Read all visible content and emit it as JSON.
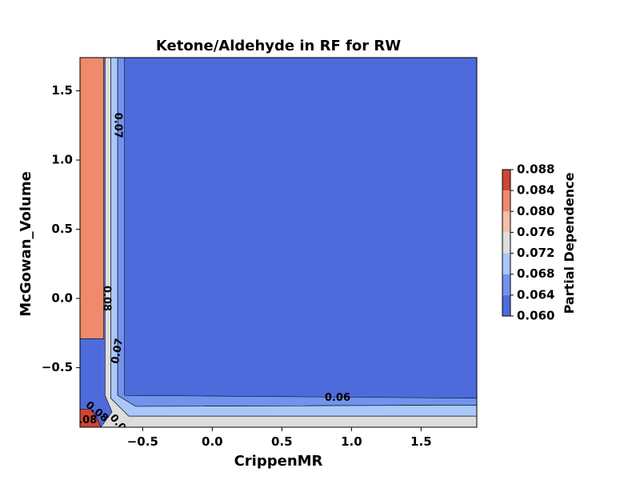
{
  "chart_data": {
    "type": "contour",
    "title": "Ketone/Aldehyde in RF for RW",
    "xlabel": "CrippenMR",
    "ylabel": "McGowan_Volume",
    "xlim": [
      -0.95,
      1.9
    ],
    "ylim": [
      -0.93,
      1.74
    ],
    "x_ticks": [
      -0.5,
      0.0,
      0.5,
      1.0,
      1.5
    ],
    "x_tick_labels": [
      "−0.5",
      "0.0",
      "0.5",
      "1.0",
      "1.5"
    ],
    "y_ticks": [
      -0.5,
      0.0,
      0.5,
      1.0,
      1.5
    ],
    "y_tick_labels": [
      "−0.5",
      "0.0",
      "0.5",
      "1.0",
      "1.5"
    ],
    "grid": false,
    "colorbar": {
      "label": "Partial Dependence",
      "levels": [
        0.06,
        0.064,
        0.068,
        0.072,
        0.076,
        0.08,
        0.084,
        0.088
      ],
      "tick_labels": [
        "0.060",
        "0.064",
        "0.068",
        "0.072",
        "0.076",
        "0.080",
        "0.084",
        "0.088"
      ],
      "colors": [
        "#4e6bdc",
        "#7193ee",
        "#aac7f9",
        "#dddddd",
        "#f5c0a6",
        "#ef8a6c",
        "#cf4436"
      ]
    },
    "contour_labels": [
      {
        "text": "0.07",
        "x": -0.68,
        "y": 1.25,
        "rotation": 90
      },
      {
        "text": "0.08",
        "x": -0.76,
        "y": -0.0,
        "rotation": 90
      },
      {
        "text": "0.07",
        "x": -0.68,
        "y": -0.38,
        "rotation": -80
      },
      {
        "text": "0.06",
        "x": 0.9,
        "y": -0.72,
        "rotation": 0
      },
      {
        "text": "0.08",
        "x": -0.83,
        "y": -0.82,
        "rotation": 40
      },
      {
        "text": "0.08",
        "x": -0.92,
        "y": -0.88,
        "rotation": 0
      },
      {
        "text": "0.0",
        "x": -0.68,
        "y": -0.9,
        "rotation": 50
      }
    ],
    "regions": [
      {
        "level_index": 6,
        "polygon": [
          [
            -0.95,
            -0.93
          ],
          [
            -0.95,
            -0.8
          ],
          [
            -0.87,
            -0.8
          ],
          [
            -0.83,
            -0.86
          ],
          [
            -0.8,
            -0.93
          ]
        ]
      },
      {
        "level_index": 5,
        "polygon": [
          [
            -0.95,
            -0.29
          ],
          [
            -0.95,
            1.74
          ],
          [
            -0.78,
            1.74
          ],
          [
            -0.78,
            -0.29
          ]
        ]
      },
      {
        "level_index": 3,
        "polygon": [
          [
            -0.77,
            1.74
          ],
          [
            -0.73,
            1.74
          ],
          [
            -0.73,
            -0.72
          ],
          [
            -0.6,
            -0.85
          ],
          [
            1.9,
            -0.85
          ],
          [
            1.9,
            -0.93
          ],
          [
            -0.8,
            -0.93
          ],
          [
            -0.72,
            -0.82
          ],
          [
            -0.77,
            -0.7
          ]
        ]
      },
      {
        "level_index": 2,
        "polygon": [
          [
            -0.73,
            1.74
          ],
          [
            -0.68,
            1.74
          ],
          [
            -0.68,
            -0.7
          ],
          [
            -0.55,
            -0.78
          ],
          [
            1.9,
            -0.77
          ],
          [
            1.9,
            -0.85
          ],
          [
            -0.6,
            -0.85
          ],
          [
            -0.73,
            -0.72
          ]
        ]
      },
      {
        "level_index": 1,
        "polygon": [
          [
            -0.68,
            1.74
          ],
          [
            -0.63,
            1.74
          ],
          [
            -0.63,
            -0.7
          ],
          [
            1.9,
            -0.72
          ],
          [
            1.9,
            -0.77
          ],
          [
            -0.55,
            -0.78
          ],
          [
            -0.68,
            -0.7
          ]
        ]
      }
    ]
  }
}
